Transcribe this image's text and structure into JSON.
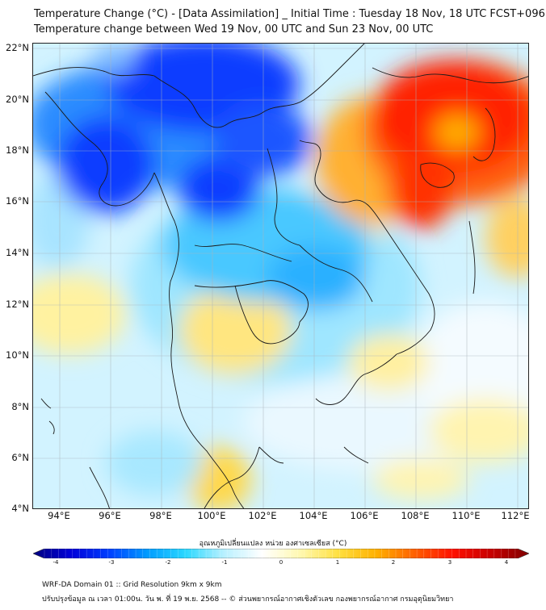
{
  "title_line1": "Temperature Change (°C) - [Data Assimilation] _ Initial Time : Tuesday 18 Nov, 18 UTC FCST+096",
  "title_line2": "Temperature change between Wed 19 Nov, 00 UTC and Sun 23 Nov, 00 UTC",
  "lat_labels": [
    "22°N",
    "20°N",
    "18°N",
    "16°N",
    "14°N",
    "12°N",
    "10°N",
    "8°N",
    "6°N",
    "4°N"
  ],
  "lon_labels": [
    "94°E",
    "96°E",
    "98°E",
    "100°E",
    "102°E",
    "104°E",
    "106°E",
    "108°E",
    "110°E",
    "112°E"
  ],
  "colorbar": {
    "title": "อุณหภูมิเปลี่ยนแปลง หน่วย องศาเซลเซียส (°C)",
    "ticks": [
      "-4",
      "-3",
      "-2",
      "-1",
      "0",
      "1",
      "2",
      "3",
      "4"
    ],
    "min": -4,
    "max": 4,
    "colors": [
      "#00007f",
      "#0000d9",
      "#0040ff",
      "#009cff",
      "#2ad8ff",
      "#b8f0ff",
      "#ffffff",
      "#fff8b0",
      "#ffe040",
      "#ffb000",
      "#ff6000",
      "#ff1000",
      "#c80000",
      "#800000"
    ]
  },
  "footer_line1": "WRF-DA Domain 01 :: Grid Resolution 9km x 9km",
  "footer_line2": "ปรับปรุงข้อมูล ณ เวลา 01:00น. วัน พ. ที่ 19 พ.ย. 2568 -- © ส่วนพยากรณ์อากาศเชิงตัวเลข กองพยากรณ์อากาศ กรมอุตุนิยมวิทยา",
  "legend_colors": {
    "strong_cooling": "#0000d9",
    "cooling": "#009cff",
    "slight_cooling": "#b8f0ff",
    "neutral": "#ffffff",
    "slight_warming": "#fff8b0",
    "warming": "#ffe040",
    "strong_warming": "#ff1000"
  }
}
